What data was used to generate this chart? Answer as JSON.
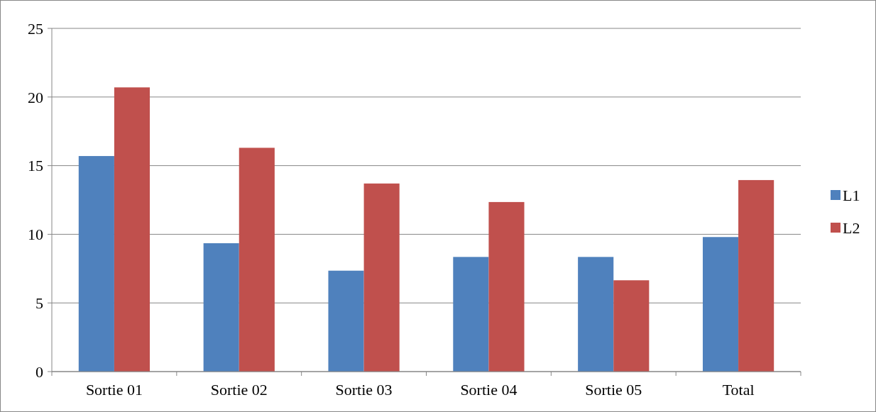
{
  "chart_data": {
    "type": "bar",
    "categories": [
      "Sortie 01",
      "Sortie 02",
      "Sortie 03",
      "Sortie 04",
      "Sortie 05",
      "Total"
    ],
    "series": [
      {
        "name": "L1",
        "color": "#4f81bd",
        "values": [
          15.7,
          9.35,
          7.35,
          8.35,
          8.35,
          9.8
        ]
      },
      {
        "name": "L2",
        "color": "#c0504d",
        "values": [
          20.7,
          16.3,
          13.7,
          12.35,
          6.65,
          13.95
        ]
      }
    ],
    "ylim": [
      0,
      25
    ],
    "yticks": [
      0,
      5,
      10,
      15,
      20,
      25
    ],
    "grid": "y",
    "legend": "right"
  }
}
